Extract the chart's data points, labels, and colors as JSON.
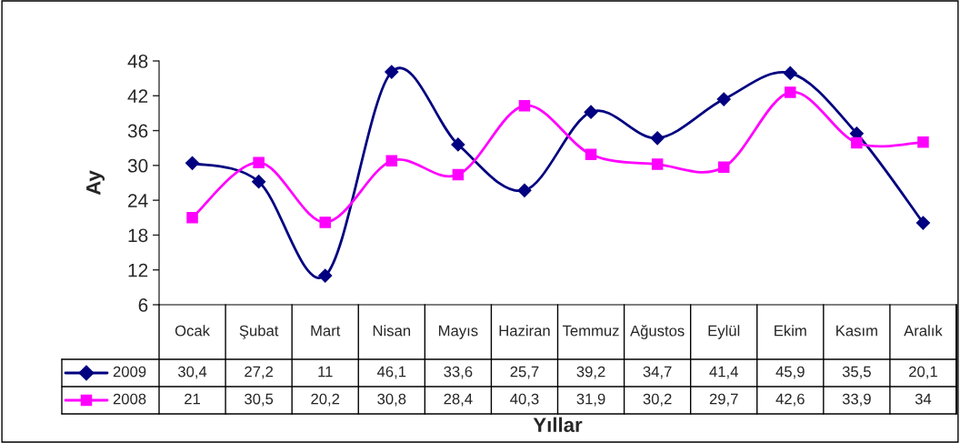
{
  "chart_data": {
    "type": "line",
    "xlabel": "Yıllar",
    "ylabel": "Ay",
    "categories": [
      "Ocak",
      "Şubat",
      "Mart",
      "Nisan",
      "Mayıs",
      "Haziran",
      "Temmuz",
      "Ağustos",
      "Eylül",
      "Ekim",
      "Kasım",
      "Aralık"
    ],
    "series": [
      {
        "name": "2009",
        "color": "#000080",
        "marker": "diamond",
        "values": [
          30.4,
          27.2,
          11,
          46.1,
          33.6,
          25.7,
          39.2,
          34.7,
          41.4,
          45.9,
          35.5,
          20.1
        ],
        "value_labels": [
          "30,4",
          "27,2",
          "11",
          "46,1",
          "33,6",
          "25,7",
          "39,2",
          "34,7",
          "41,4",
          "45,9",
          "35,5",
          "20,1"
        ]
      },
      {
        "name": "2008",
        "color": "#ff00ff",
        "marker": "square",
        "values": [
          21,
          30.5,
          20.2,
          30.8,
          28.4,
          40.3,
          31.9,
          30.2,
          29.7,
          42.6,
          33.9,
          34
        ],
        "value_labels": [
          "21",
          "30,5",
          "20,2",
          "30,8",
          "28,4",
          "40,3",
          "31,9",
          "30,2",
          "29,7",
          "42,6",
          "33,9",
          "34"
        ]
      }
    ],
    "ylim": [
      6,
      48
    ],
    "yticks": [
      6,
      12,
      18,
      24,
      30,
      36,
      42,
      48
    ],
    "legend": "bottom",
    "line_style": "solid"
  }
}
